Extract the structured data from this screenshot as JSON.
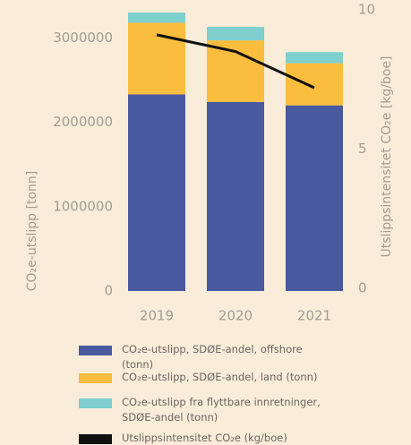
{
  "chart_data": {
    "type": "bar",
    "stacked": true,
    "categories": [
      "2019",
      "2020",
      "2021"
    ],
    "series": [
      {
        "name": "CO₂e-utslipp, SDØE-andel, offshore (tonn)",
        "color": "#4a5aa0",
        "values": [
          2330000,
          2240000,
          2200000
        ]
      },
      {
        "name": "CO₂e-utslipp, SDØE-andel, land (tonn)",
        "color": "#fbbd3e",
        "values": [
          850000,
          730000,
          500000
        ]
      },
      {
        "name": "CO₂e-utslipp fra flyttbare innretninger, SDØE-andel (tonn)",
        "color": "#7fcfcf",
        "values": [
          120000,
          160000,
          130000
        ]
      },
      {
        "name": "Utslippsintensitet CO₂e (kg/boe)",
        "color": "#111111",
        "type": "line",
        "axis": "y2",
        "values": [
          9.2,
          8.6,
          7.3
        ]
      }
    ],
    "ylabel": "CO₂e-utslipp [tonn]",
    "y2label": "Utslippsintensitet CO₂e [kg/boe]",
    "ylim": [
      0,
      3300000
    ],
    "yticks": [
      0,
      1000000,
      2000000,
      3000000
    ],
    "y2lim": [
      0,
      10
    ],
    "y2ticks": [
      0,
      5,
      10
    ],
    "grid": false
  }
}
